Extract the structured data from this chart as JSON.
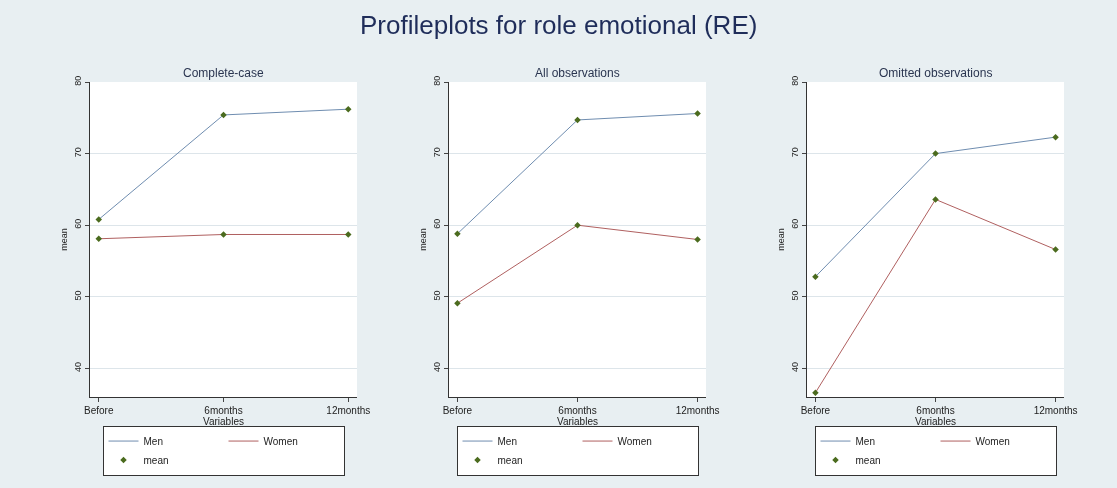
{
  "chart_data": [
    {
      "type": "line",
      "title": "Complete-case",
      "xlabel": "Variables",
      "ylabel": "mean",
      "annotations": [
        "Profileplots for role emotional (RE)"
      ],
      "categories": [
        "Before",
        "6months",
        "12months"
      ],
      "ylim": [
        36,
        80
      ],
      "yticks": [
        40,
        50,
        60,
        70,
        80
      ],
      "grid": "y",
      "legend": "bottom",
      "marker": "none",
      "series": [
        {
          "name": "Men",
          "color": "#6f8db0",
          "values": [
            60.8,
            75.4,
            76.2
          ]
        },
        {
          "name": "Women",
          "color": "#b06060",
          "values": [
            58.1,
            58.7,
            58.7
          ]
        },
        {
          "name": "mean",
          "type": "scatter",
          "marker": "diamond",
          "color": "#4b6b1e",
          "x": [
            "Before",
            "6months",
            "12months",
            "Before",
            "6months",
            "12months"
          ],
          "values": [
            60.8,
            75.4,
            76.2,
            58.1,
            58.7,
            58.7
          ]
        }
      ]
    },
    {
      "type": "line",
      "title": "All observations",
      "xlabel": "Variables",
      "ylabel": "mean",
      "categories": [
        "Before",
        "6months",
        "12months"
      ],
      "ylim": [
        36,
        80
      ],
      "yticks": [
        40,
        50,
        60,
        70,
        80
      ],
      "grid": "y",
      "legend": "bottom",
      "marker": "none",
      "series": [
        {
          "name": "Men",
          "color": "#6f8db0",
          "values": [
            58.8,
            74.7,
            75.6
          ]
        },
        {
          "name": "Women",
          "color": "#b06060",
          "values": [
            49.1,
            60.0,
            58.0
          ]
        },
        {
          "name": "mean",
          "type": "scatter",
          "marker": "diamond",
          "color": "#4b6b1e",
          "x": [
            "Before",
            "6months",
            "12months",
            "Before",
            "6months",
            "12months"
          ],
          "values": [
            58.8,
            74.7,
            75.6,
            49.1,
            60.0,
            58.0
          ]
        }
      ]
    },
    {
      "type": "line",
      "title": "Omitted observations",
      "xlabel": "Variables",
      "ylabel": "mean",
      "categories": [
        "Before",
        "6months",
        "12months"
      ],
      "ylim": [
        36,
        80
      ],
      "yticks": [
        40,
        50,
        60,
        70,
        80
      ],
      "grid": "y",
      "legend": "bottom",
      "marker": "none",
      "series": [
        {
          "name": "Men",
          "color": "#6f8db0",
          "values": [
            52.8,
            70.0,
            72.3
          ]
        },
        {
          "name": "Women",
          "color": "#b06060",
          "values": [
            36.6,
            63.6,
            56.6
          ]
        },
        {
          "name": "mean",
          "type": "scatter",
          "marker": "diamond",
          "color": "#4b6b1e",
          "x": [
            "Before",
            "6months",
            "12months",
            "Before",
            "6months",
            "12months"
          ],
          "values": [
            52.8,
            70.0,
            72.3,
            36.6,
            63.6,
            56.6
          ]
        }
      ]
    }
  ]
}
